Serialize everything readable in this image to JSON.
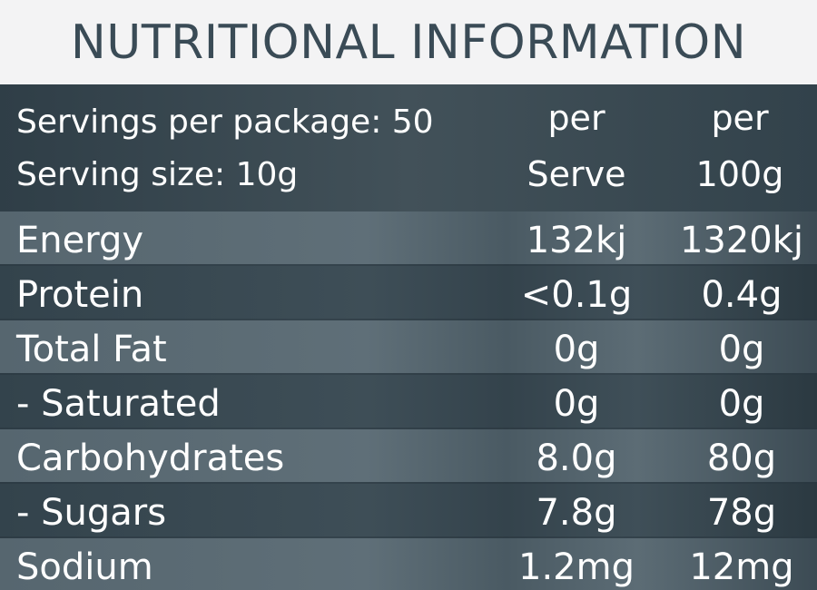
{
  "title": "NUTRITIONAL INFORMATION",
  "header": {
    "servings": "Servings per package: 50",
    "serving_size": "Serving size: 10g",
    "col1_line1": "per",
    "col1_line2": "Serve",
    "col2_line1": "per",
    "col2_line2": "100g"
  },
  "rows": [
    {
      "label": "Energy",
      "per_serve": "132kj",
      "per_100g": "1320kj"
    },
    {
      "label": "Protein",
      "per_serve": "<0.1g",
      "per_100g": "0.4g"
    },
    {
      "label": "Total Fat",
      "per_serve": "0g",
      "per_100g": "0g"
    },
    {
      "label": "- Saturated",
      "per_serve": "0g",
      "per_100g": "0g"
    },
    {
      "label": "Carbohydrates",
      "per_serve": "8.0g",
      "per_100g": "80g"
    },
    {
      "label": "- Sugars",
      "per_serve": "7.8g",
      "per_100g": "78g"
    },
    {
      "label": "Sodium",
      "per_serve": "1.2mg",
      "per_100g": "12mg"
    }
  ],
  "colors": {
    "title_text": "#3a4b56",
    "title_bg": "#f3f3f4",
    "panel_bg": "#3e4e57",
    "text": "#ffffff"
  }
}
